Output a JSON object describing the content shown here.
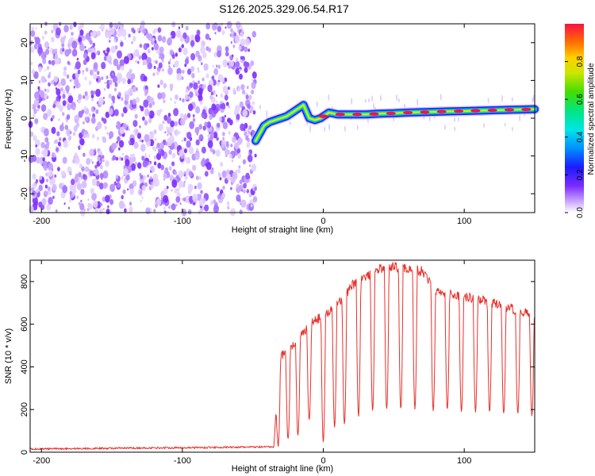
{
  "title": "S126.2025.329.06.54.R17",
  "chart_data": [
    {
      "type": "heatmap",
      "xlabel": "Height of straight line (km)",
      "ylabel": "Frequency (Hz)",
      "xlim": [
        -208,
        150
      ],
      "ylim": [
        -25,
        25
      ],
      "xticks": [
        -200,
        -100,
        0,
        100
      ],
      "yticks": [
        -20,
        -10,
        0,
        10,
        20
      ],
      "noise_region_end_x": -48,
      "signal_trace": {
        "x": [
          -48,
          -45,
          -42,
          -38,
          -34,
          -30,
          -26,
          -22,
          -18,
          -14,
          -10,
          -6,
          -2,
          0,
          4,
          10,
          20,
          30,
          40,
          50,
          60,
          70,
          80,
          90,
          100,
          110,
          120,
          130,
          140,
          150
        ],
        "y": [
          -6,
          -4,
          -2,
          -1,
          -0.5,
          0,
          0.5,
          1.5,
          2.5,
          3.5,
          0,
          -0.5,
          0,
          0.5,
          1.5,
          1,
          1,
          1,
          1.2,
          1.3,
          1.5,
          1.6,
          1.7,
          1.8,
          1.9,
          2,
          2.1,
          2.2,
          2.3,
          2.4
        ]
      },
      "colorbar": {
        "label": "Normalized spectral amplitude",
        "range": [
          0,
          1
        ],
        "ticks": [
          "0.0",
          "0.2",
          "0.4",
          "0.6",
          "0.8"
        ],
        "tick_values": [
          0,
          0.2,
          0.4,
          0.6,
          0.8
        ]
      }
    },
    {
      "type": "line",
      "xlabel": "Height of straight line (km)",
      "ylabel": "SNR (10 * v/v)",
      "xlim": [
        -208,
        150
      ],
      "ylim": [
        0,
        900
      ],
      "xticks": [
        -200,
        -100,
        0,
        100
      ],
      "yticks": [
        0,
        200,
        400,
        600,
        800
      ],
      "color": "#e8302a",
      "envelope": {
        "x": [
          -208,
          -35,
          -32,
          -30,
          -25,
          -20,
          -15,
          -10,
          -5,
          0,
          5,
          10,
          15,
          20,
          30,
          40,
          50,
          60,
          70,
          80,
          90,
          100,
          110,
          120,
          130,
          140,
          150
        ],
        "y": [
          15,
          25,
          400,
          450,
          480,
          520,
          550,
          600,
          620,
          640,
          660,
          700,
          730,
          780,
          820,
          860,
          870,
          860,
          850,
          760,
          740,
          730,
          720,
          700,
          680,
          660,
          640
        ]
      },
      "dips": {
        "x": [
          -32,
          -25,
          -18,
          -10,
          0,
          8,
          15,
          25,
          35,
          45,
          55,
          65,
          78,
          88,
          98,
          108,
          118,
          128,
          138,
          148
        ],
        "y": [
          30,
          60,
          80,
          150,
          50,
          120,
          130,
          170,
          190,
          200,
          200,
          200,
          190,
          200,
          190,
          190,
          190,
          180,
          180,
          170
        ]
      }
    }
  ]
}
